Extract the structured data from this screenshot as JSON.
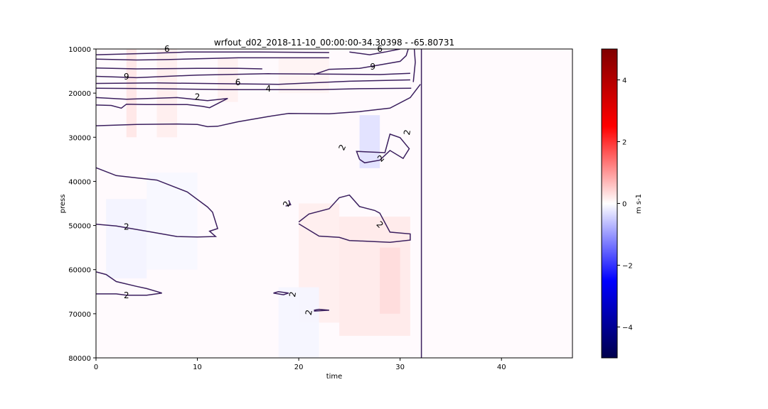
{
  "chart_data": {
    "type": "heatmap",
    "title": "wrfout_d02_2018-11-10_00:00:00-34.30398 - -65.80731",
    "xlabel": "time",
    "ylabel": "press",
    "xlim": [
      0,
      47
    ],
    "ylim": [
      80000,
      10000
    ],
    "x_ticks": [
      0,
      10,
      20,
      30,
      40
    ],
    "x_tick_labels": [
      "0",
      "10",
      "20",
      "30",
      "40"
    ],
    "y_ticks": [
      10000,
      20000,
      30000,
      40000,
      50000,
      60000,
      70000,
      80000
    ],
    "y_tick_labels": [
      "10000",
      "20000",
      "30000",
      "40000",
      "50000",
      "60000",
      "70000",
      "80000"
    ],
    "grid": false,
    "colorbar": {
      "label": "m s-1",
      "range": [
        -5,
        5
      ],
      "colormap": "seismic",
      "colors": [
        "#00004c",
        "#0000ff",
        "#ffffff",
        "#ff0000",
        "#800000"
      ],
      "ticks": [
        -4,
        -2,
        0,
        2,
        4
      ],
      "tick_labels": [
        "−4",
        "−2",
        "0",
        "2",
        "4"
      ]
    },
    "contour_color": "#3b1f5e",
    "shading_cells": [
      {
        "x": [
          3,
          4
        ],
        "p": [
          10000,
          30000
        ],
        "v": 0.25
      },
      {
        "x": [
          6,
          8
        ],
        "p": [
          10000,
          30000
        ],
        "v": 0.18
      },
      {
        "x": [
          12,
          14
        ],
        "p": [
          12000,
          22000
        ],
        "v": 0.15
      },
      {
        "x": [
          18,
          23
        ],
        "p": [
          12000,
          20000
        ],
        "v": 0.12
      },
      {
        "x": [
          20,
          24
        ],
        "p": [
          45000,
          72000
        ],
        "v": 0.18
      },
      {
        "x": [
          24,
          31
        ],
        "p": [
          48000,
          75000
        ],
        "v": 0.22
      },
      {
        "x": [
          28,
          30
        ],
        "p": [
          55000,
          70000
        ],
        "v": 0.35
      },
      {
        "x": [
          26,
          28
        ],
        "p": [
          25000,
          37000
        ],
        "v": -0.3
      },
      {
        "x": [
          1,
          5
        ],
        "p": [
          44000,
          62000
        ],
        "v": -0.12
      },
      {
        "x": [
          5,
          10
        ],
        "p": [
          38000,
          60000
        ],
        "v": -0.08
      },
      {
        "x": [
          18,
          22
        ],
        "p": [
          64000,
          80000
        ],
        "v": -0.1
      }
    ],
    "contour_lines": [
      {
        "level": 6,
        "points": [
          [
            0,
            11300
          ],
          [
            5,
            11000
          ],
          [
            9,
            10700
          ],
          [
            16,
            10700
          ],
          [
            23,
            10800
          ]
        ]
      },
      {
        "level": 9,
        "points": [
          [
            0,
            12300
          ],
          [
            4,
            12500
          ],
          [
            7,
            12400
          ],
          [
            10,
            12200
          ],
          [
            14,
            12000
          ],
          [
            17,
            12000
          ],
          [
            23,
            12000
          ]
        ]
      },
      {
        "level": 6,
        "points": [
          [
            0,
            14300
          ],
          [
            4,
            14500
          ],
          [
            10,
            14400
          ],
          [
            14,
            14400
          ],
          [
            16.4,
            14500
          ]
        ]
      },
      {
        "level": 9,
        "points": [
          [
            0,
            16200
          ],
          [
            4,
            16500
          ],
          [
            10,
            15900
          ],
          [
            17,
            15600
          ],
          [
            23,
            15700
          ],
          [
            28,
            15800
          ],
          [
            31,
            15500
          ]
        ]
      },
      {
        "level": 6,
        "points": [
          [
            0,
            17800
          ],
          [
            6,
            17700
          ],
          [
            14,
            17900
          ],
          [
            18,
            18000
          ],
          [
            25,
            17300
          ],
          [
            31,
            17000
          ]
        ]
      },
      {
        "level": 4,
        "points": [
          [
            0,
            18900
          ],
          [
            6,
            19000
          ],
          [
            13,
            19200
          ],
          [
            17,
            19200
          ],
          [
            22,
            19200
          ],
          [
            26,
            19000
          ],
          [
            31.1,
            18900
          ]
        ]
      },
      {
        "level": 2,
        "points": [
          [
            0,
            21000
          ],
          [
            3,
            21400
          ],
          [
            8,
            21000
          ],
          [
            11,
            21700
          ],
          [
            13,
            21200
          ],
          [
            11.2,
            23300
          ],
          [
            10.5,
            23000
          ],
          [
            9,
            22600
          ],
          [
            5,
            22600
          ],
          [
            3,
            22500
          ],
          [
            2.5,
            23400
          ],
          [
            1.5,
            22800
          ],
          [
            0,
            22700
          ]
        ]
      },
      {
        "level": 2,
        "points": [
          [
            0,
            27400
          ],
          [
            4,
            27100
          ],
          [
            8,
            27000
          ],
          [
            10,
            27100
          ],
          [
            11,
            27600
          ],
          [
            12,
            27500
          ],
          [
            14,
            26500
          ],
          [
            17,
            25300
          ],
          [
            19,
            24600
          ],
          [
            23,
            24700
          ],
          [
            26,
            24200
          ],
          [
            29,
            23400
          ],
          [
            31,
            21000
          ],
          [
            32,
            18000
          ]
        ]
      },
      {
        "level": 6,
        "points": [
          [
            25,
            10700
          ],
          [
            27,
            11300
          ],
          [
            28.5,
            10700
          ],
          [
            30,
            10000
          ]
        ]
      },
      {
        "level": 9,
        "points": [
          [
            21.5,
            15800
          ],
          [
            23,
            14600
          ],
          [
            26,
            14400
          ],
          [
            28,
            13600
          ],
          [
            30,
            12800
          ],
          [
            30.6,
            11500
          ],
          [
            30.8,
            10000
          ]
        ]
      },
      {
        "level": 4,
        "points": [
          [
            31.4,
            10000
          ],
          [
            31.5,
            13000
          ],
          [
            31.3,
            17500
          ]
        ]
      },
      {
        "level": 2,
        "points": [
          [
            32.1,
            10000
          ],
          [
            32.1,
            80000
          ]
        ]
      },
      {
        "level": 2,
        "points": [
          [
            26,
            35000
          ],
          [
            25.7,
            33200
          ],
          [
            28.5,
            33500
          ],
          [
            29,
            29300
          ],
          [
            30,
            30100
          ],
          [
            30.9,
            32600
          ],
          [
            30.3,
            34800
          ],
          [
            29,
            33000
          ],
          [
            28,
            35200
          ],
          [
            26.5,
            35800
          ],
          [
            26,
            35000
          ]
        ]
      },
      {
        "level": 2,
        "points": [
          [
            0,
            36900
          ],
          [
            2,
            38700
          ],
          [
            4,
            39200
          ],
          [
            6,
            39700
          ],
          [
            9,
            42400
          ],
          [
            11,
            45800
          ],
          [
            11.5,
            47000
          ],
          [
            12,
            50700
          ],
          [
            11.2,
            51300
          ],
          [
            11.8,
            52500
          ],
          [
            10,
            52600
          ],
          [
            8,
            52500
          ],
          [
            5,
            51300
          ],
          [
            2,
            50100
          ],
          [
            0,
            49700
          ]
        ]
      },
      {
        "level": 2,
        "points": [
          [
            20,
            49200
          ],
          [
            21,
            47400
          ],
          [
            23,
            46200
          ],
          [
            24,
            43700
          ],
          [
            25,
            43100
          ],
          [
            26,
            45700
          ],
          [
            27.5,
            46600
          ],
          [
            28,
            47200
          ],
          [
            29,
            51500
          ],
          [
            31,
            51900
          ],
          [
            31,
            53300
          ],
          [
            29,
            53800
          ],
          [
            25,
            53400
          ],
          [
            24,
            52700
          ],
          [
            22,
            52400
          ],
          [
            20,
            49600
          ]
        ]
      },
      {
        "level": 2,
        "points": [
          [
            19,
            44300
          ],
          [
            19.2,
            45300
          ],
          [
            18.7,
            45600
          ]
        ]
      },
      {
        "level": 2,
        "points": [
          [
            0,
            60500
          ],
          [
            1,
            61100
          ],
          [
            2,
            62700
          ],
          [
            4,
            63800
          ],
          [
            5,
            64300
          ],
          [
            6.5,
            65300
          ],
          [
            5,
            65800
          ],
          [
            3,
            65800
          ],
          [
            2,
            65500
          ],
          [
            0,
            65500
          ]
        ]
      },
      {
        "level": 2,
        "points": [
          [
            17.5,
            65300
          ],
          [
            18,
            65000
          ],
          [
            19,
            65300
          ],
          [
            18.5,
            65700
          ],
          [
            17.5,
            65300
          ]
        ]
      },
      {
        "level": 2,
        "points": [
          [
            21.5,
            69200
          ],
          [
            22,
            69000
          ],
          [
            23,
            69200
          ],
          [
            21.5,
            69400
          ]
        ]
      }
    ],
    "contour_labels": [
      {
        "text": "6",
        "x": 7,
        "y": 10000,
        "rot": 0
      },
      {
        "text": "6",
        "x": 28,
        "y": 10000,
        "rot": 0
      },
      {
        "text": "9",
        "x": 3,
        "y": 16300,
        "rot": 0
      },
      {
        "text": "9",
        "x": 27.3,
        "y": 14000,
        "rot": 0
      },
      {
        "text": "6",
        "x": 14,
        "y": 17600,
        "rot": 0
      },
      {
        "text": "4",
        "x": 17,
        "y": 19000,
        "rot": 0
      },
      {
        "text": "2",
        "x": 10,
        "y": 20900,
        "rot": 0
      },
      {
        "text": "2",
        "x": 24.3,
        "y": 32300,
        "rot": -65
      },
      {
        "text": "2",
        "x": 30.7,
        "y": 28900,
        "rot": -80
      },
      {
        "text": "2",
        "x": 28.1,
        "y": 34800,
        "rot": -45
      },
      {
        "text": "2",
        "x": 18.8,
        "y": 45100,
        "rot": -70
      },
      {
        "text": "2",
        "x": 28,
        "y": 49800,
        "rot": 45
      },
      {
        "text": "2",
        "x": 3,
        "y": 50300,
        "rot": 0
      },
      {
        "text": "2",
        "x": 3,
        "y": 65800,
        "rot": 0
      },
      {
        "text": "2",
        "x": 19.4,
        "y": 65600,
        "rot": -80
      },
      {
        "text": "2",
        "x": 21,
        "y": 69700,
        "rot": -80
      }
    ]
  }
}
